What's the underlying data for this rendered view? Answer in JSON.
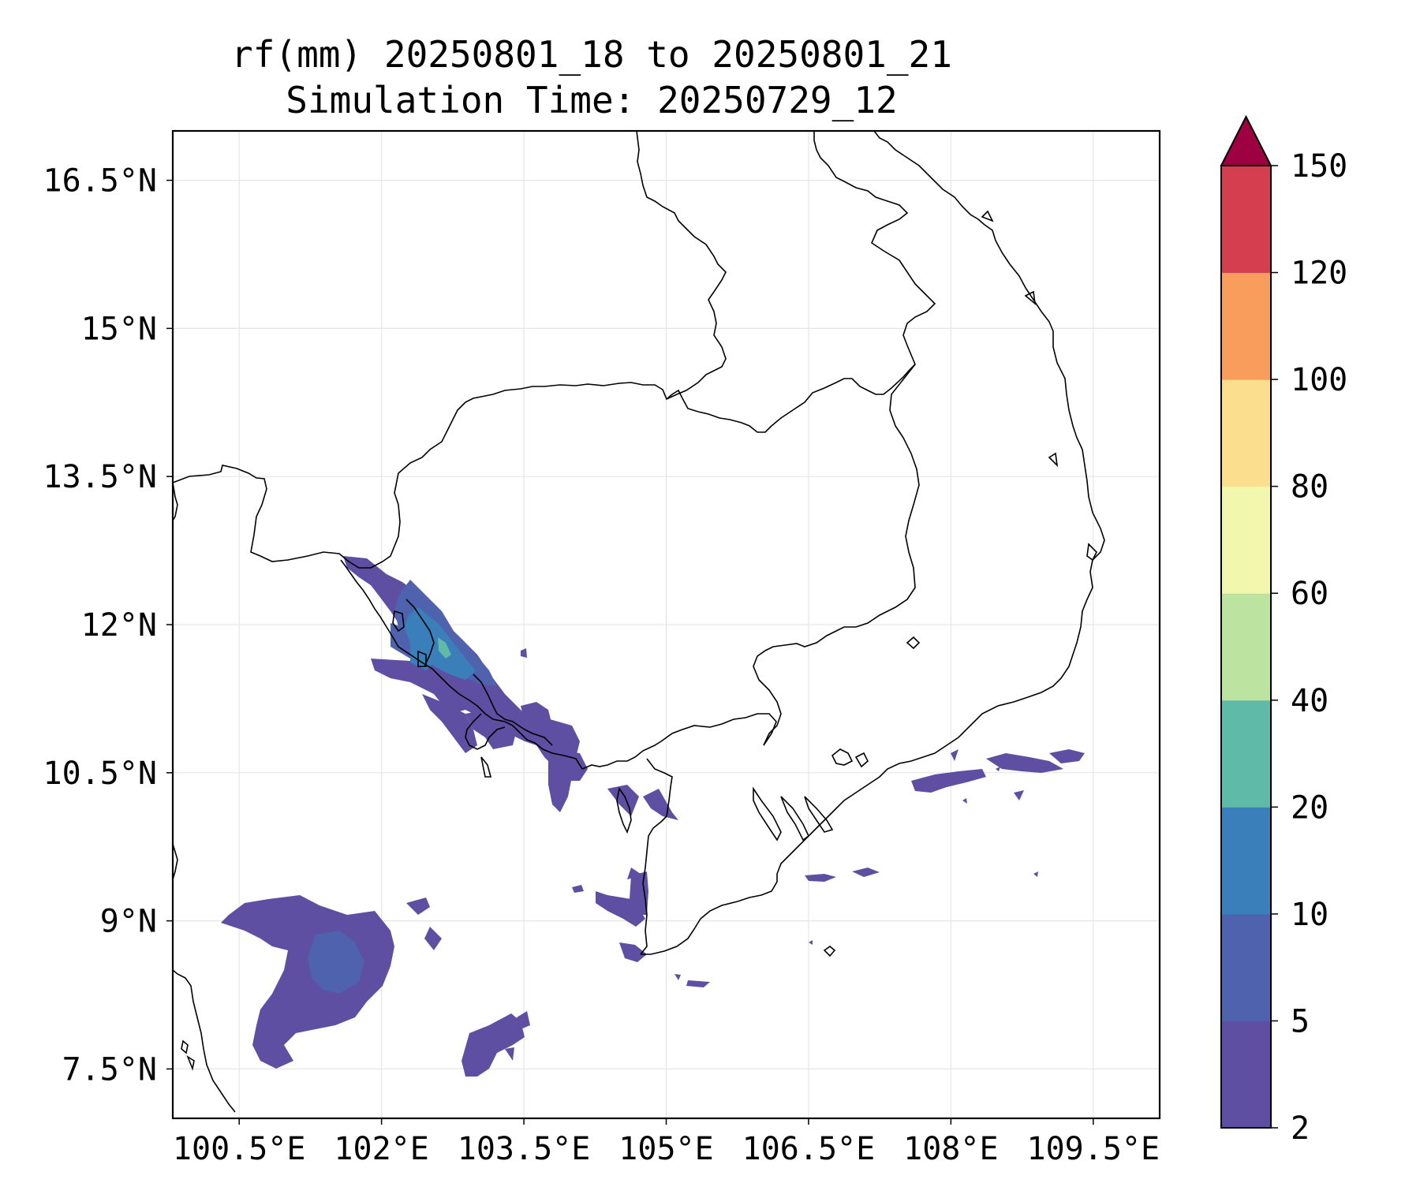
{
  "title": {
    "line1": "rf(mm) 20250801_18 to 20250801_21",
    "line2": "Simulation Time: 20250729_12"
  },
  "map": {
    "lon_range": [
      99.8,
      110.2
    ],
    "lat_range": [
      7.0,
      17.0
    ],
    "lon_ticks": [
      {
        "value": 100.5,
        "label": "100.5°E"
      },
      {
        "value": 102.0,
        "label": "102°E"
      },
      {
        "value": 103.5,
        "label": "103.5°E"
      },
      {
        "value": 105.0,
        "label": "105°E"
      },
      {
        "value": 106.5,
        "label": "106.5°E"
      },
      {
        "value": 108.0,
        "label": "108°E"
      },
      {
        "value": 109.5,
        "label": "109.5°E"
      }
    ],
    "lat_ticks": [
      {
        "value": 16.5,
        "label": "16.5°N"
      },
      {
        "value": 15.0,
        "label": "15°N"
      },
      {
        "value": 13.5,
        "label": "13.5°N"
      },
      {
        "value": 12.0,
        "label": "12°N"
      },
      {
        "value": 10.5,
        "label": "10.5°N"
      },
      {
        "value": 9.0,
        "label": "9°N"
      },
      {
        "value": 7.5,
        "label": "7.5°N"
      }
    ],
    "gridlines": true,
    "rain_areas": [
      {
        "region": "Cambodian coast / Gulf of Thailand",
        "min_mm": 2,
        "max_mm": 40
      },
      {
        "region": "Gulf of Thailand south-west",
        "min_mm": 2,
        "max_mm": 10
      },
      {
        "region": "South China Sea off Vietnam",
        "min_mm": 2,
        "max_mm": 10
      }
    ]
  },
  "colorbar": {
    "levels": [
      2,
      5,
      10,
      20,
      40,
      60,
      80,
      100,
      120,
      150
    ],
    "tick_labels": [
      "2",
      "5",
      "10",
      "20",
      "40",
      "60",
      "80",
      "100",
      "120",
      "150"
    ],
    "colors": [
      "#5e4fa2",
      "#4e62ae",
      "#3a7fb9",
      "#5fbaa8",
      "#bde3a0",
      "#f1f8ae",
      "#fbdf8e",
      "#f89d5c",
      "#d53e4f"
    ],
    "extend_color": "#9e0142",
    "extend": "max"
  }
}
